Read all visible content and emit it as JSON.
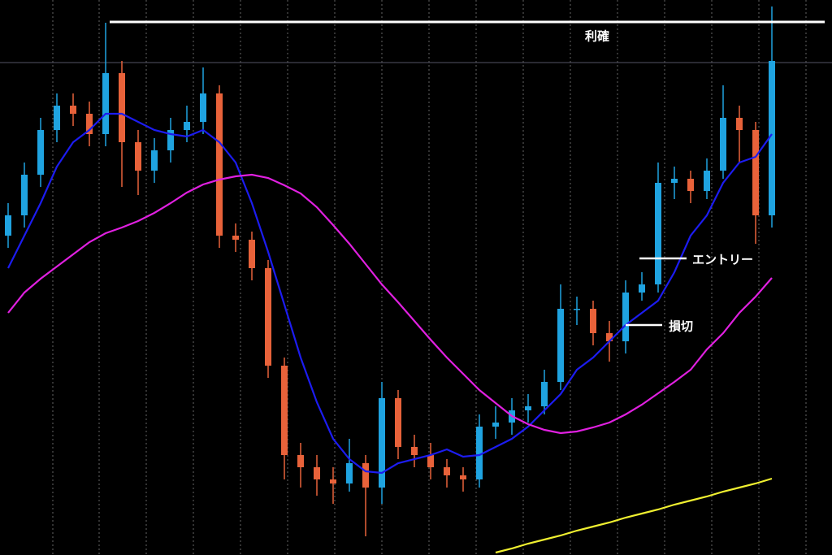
{
  "chart_data": {
    "type": "candlestick",
    "categories": [
      null,
      null,
      null,
      null,
      null,
      null,
      null,
      null,
      null,
      null,
      null,
      null,
      null,
      null,
      null,
      null,
      null,
      null,
      null,
      null,
      null,
      null,
      null,
      null,
      null,
      null,
      null,
      null,
      null,
      null,
      null,
      null,
      null,
      null,
      null,
      null,
      null,
      null,
      null,
      null,
      null,
      null,
      null,
      null,
      null,
      null,
      null,
      null
    ],
    "open": [
      393,
      418,
      468,
      523,
      553,
      543,
      518,
      593,
      508,
      473,
      498,
      523,
      533,
      568,
      393,
      388,
      353,
      233,
      123,
      108,
      93,
      88,
      113,
      83,
      193,
      133,
      123,
      108,
      98,
      93,
      158,
      163,
      178,
      183,
      213,
      303,
      303,
      273,
      263,
      323,
      333,
      458,
      463,
      448,
      473,
      538,
      523,
      418
    ],
    "high": [
      433,
      483,
      538,
      568,
      568,
      558,
      655,
      608,
      523,
      513,
      538,
      553,
      600,
      578,
      408,
      398,
      363,
      243,
      138,
      123,
      108,
      143,
      123,
      213,
      203,
      148,
      138,
      118,
      108,
      173,
      183,
      193,
      198,
      228,
      333,
      318,
      313,
      288,
      338,
      348,
      483,
      478,
      473,
      488,
      578,
      553,
      533,
      675
    ],
    "low": [
      378,
      403,
      453,
      508,
      528,
      503,
      503,
      453,
      443,
      458,
      483,
      508,
      518,
      378,
      373,
      338,
      218,
      93,
      83,
      73,
      63,
      78,
      23,
      63,
      118,
      108,
      93,
      83,
      78,
      83,
      143,
      148,
      163,
      173,
      203,
      283,
      258,
      238,
      248,
      313,
      323,
      438,
      433,
      438,
      463,
      483,
      383,
      403
    ],
    "close": [
      418,
      468,
      523,
      553,
      543,
      518,
      593,
      508,
      473,
      498,
      523,
      533,
      568,
      393,
      388,
      353,
      233,
      123,
      108,
      93,
      88,
      113,
      83,
      193,
      133,
      123,
      108,
      98,
      93,
      158,
      163,
      178,
      183,
      213,
      303,
      303,
      273,
      263,
      323,
      333,
      458,
      463,
      448,
      473,
      538,
      523,
      418,
      608
    ],
    "up_color": "#1fa3e0",
    "down_color": "#e8623a",
    "ylim": [
      0,
      683
    ],
    "series": [
      {
        "color": "#1c1cf0",
        "values": [
          353,
          393,
          433,
          478,
          508,
          523,
          543,
          543,
          533,
          523,
          518,
          515,
          523,
          508,
          483,
          433,
          373,
          308,
          243,
          188,
          143,
          118,
          103,
          101,
          113,
          118,
          123,
          130,
          121,
          123,
          133,
          143,
          158,
          178,
          198,
          228,
          243,
          263,
          283,
          298,
          313,
          348,
          393,
          418,
          458,
          483,
          490,
          518
        ]
      },
      {
        "color": "#e020e0",
        "values": [
          298,
          323,
          340,
          355,
          370,
          385,
          396,
          403,
          411,
          421,
          433,
          446,
          456,
          462,
          466,
          468,
          464,
          455,
          445,
          428,
          406,
          383,
          358,
          333,
          311,
          288,
          265,
          243,
          223,
          203,
          187,
          171,
          161,
          154,
          150,
          152,
          157,
          163,
          173,
          185,
          199,
          213,
          228,
          253,
          273,
          298,
          318,
          341
        ]
      },
      {
        "color": "#f0f030",
        "values": [
          null,
          null,
          null,
          null,
          null,
          null,
          null,
          null,
          null,
          null,
          null,
          null,
          null,
          null,
          null,
          null,
          null,
          null,
          null,
          null,
          null,
          null,
          null,
          null,
          null,
          null,
          null,
          null,
          null,
          null,
          3,
          8,
          14,
          19,
          24,
          30,
          35,
          40,
          46,
          51,
          56,
          62,
          67,
          72,
          78,
          83,
          88,
          94
        ]
      }
    ],
    "price_line": 606,
    "annotations": [
      {
        "text": "利確",
        "value": 656
      },
      {
        "text": "エントリー",
        "value": 365
      },
      {
        "text": "損切",
        "value": 283
      }
    ]
  }
}
